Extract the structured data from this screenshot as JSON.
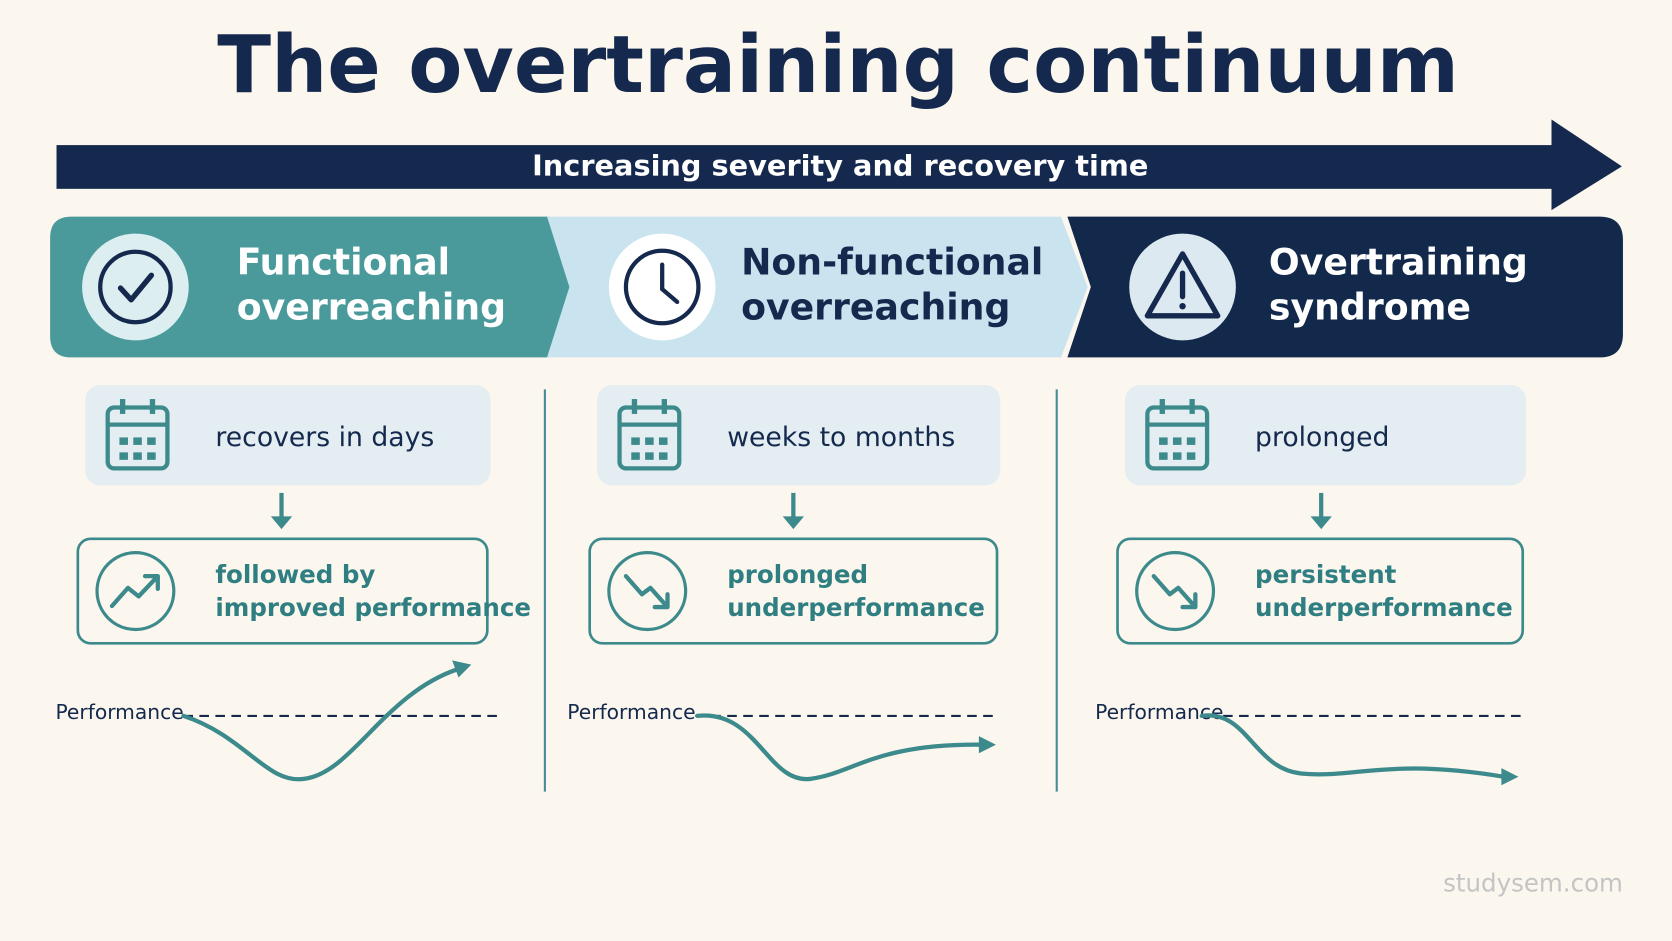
{
  "title": "The overtraining continuum",
  "severity_arrow": "Increasing severity and recovery time",
  "stages": [
    {
      "title": [
        "Functional",
        "overreaching"
      ],
      "recovery": "recovers in days",
      "outcome": [
        "followed by",
        "improved performance"
      ],
      "graph_label": "Performance"
    },
    {
      "title": [
        "Non-functional",
        "overreaching"
      ],
      "recovery": "weeks to months",
      "outcome": [
        "prolonged",
        "underperformance"
      ],
      "graph_label": "Performance"
    },
    {
      "title": [
        "Overtraining",
        "syndrome"
      ],
      "recovery": "prolonged",
      "outcome": [
        "persistent",
        "underperformance"
      ],
      "graph_label": "Performance"
    }
  ],
  "watermark": "studysem.com"
}
